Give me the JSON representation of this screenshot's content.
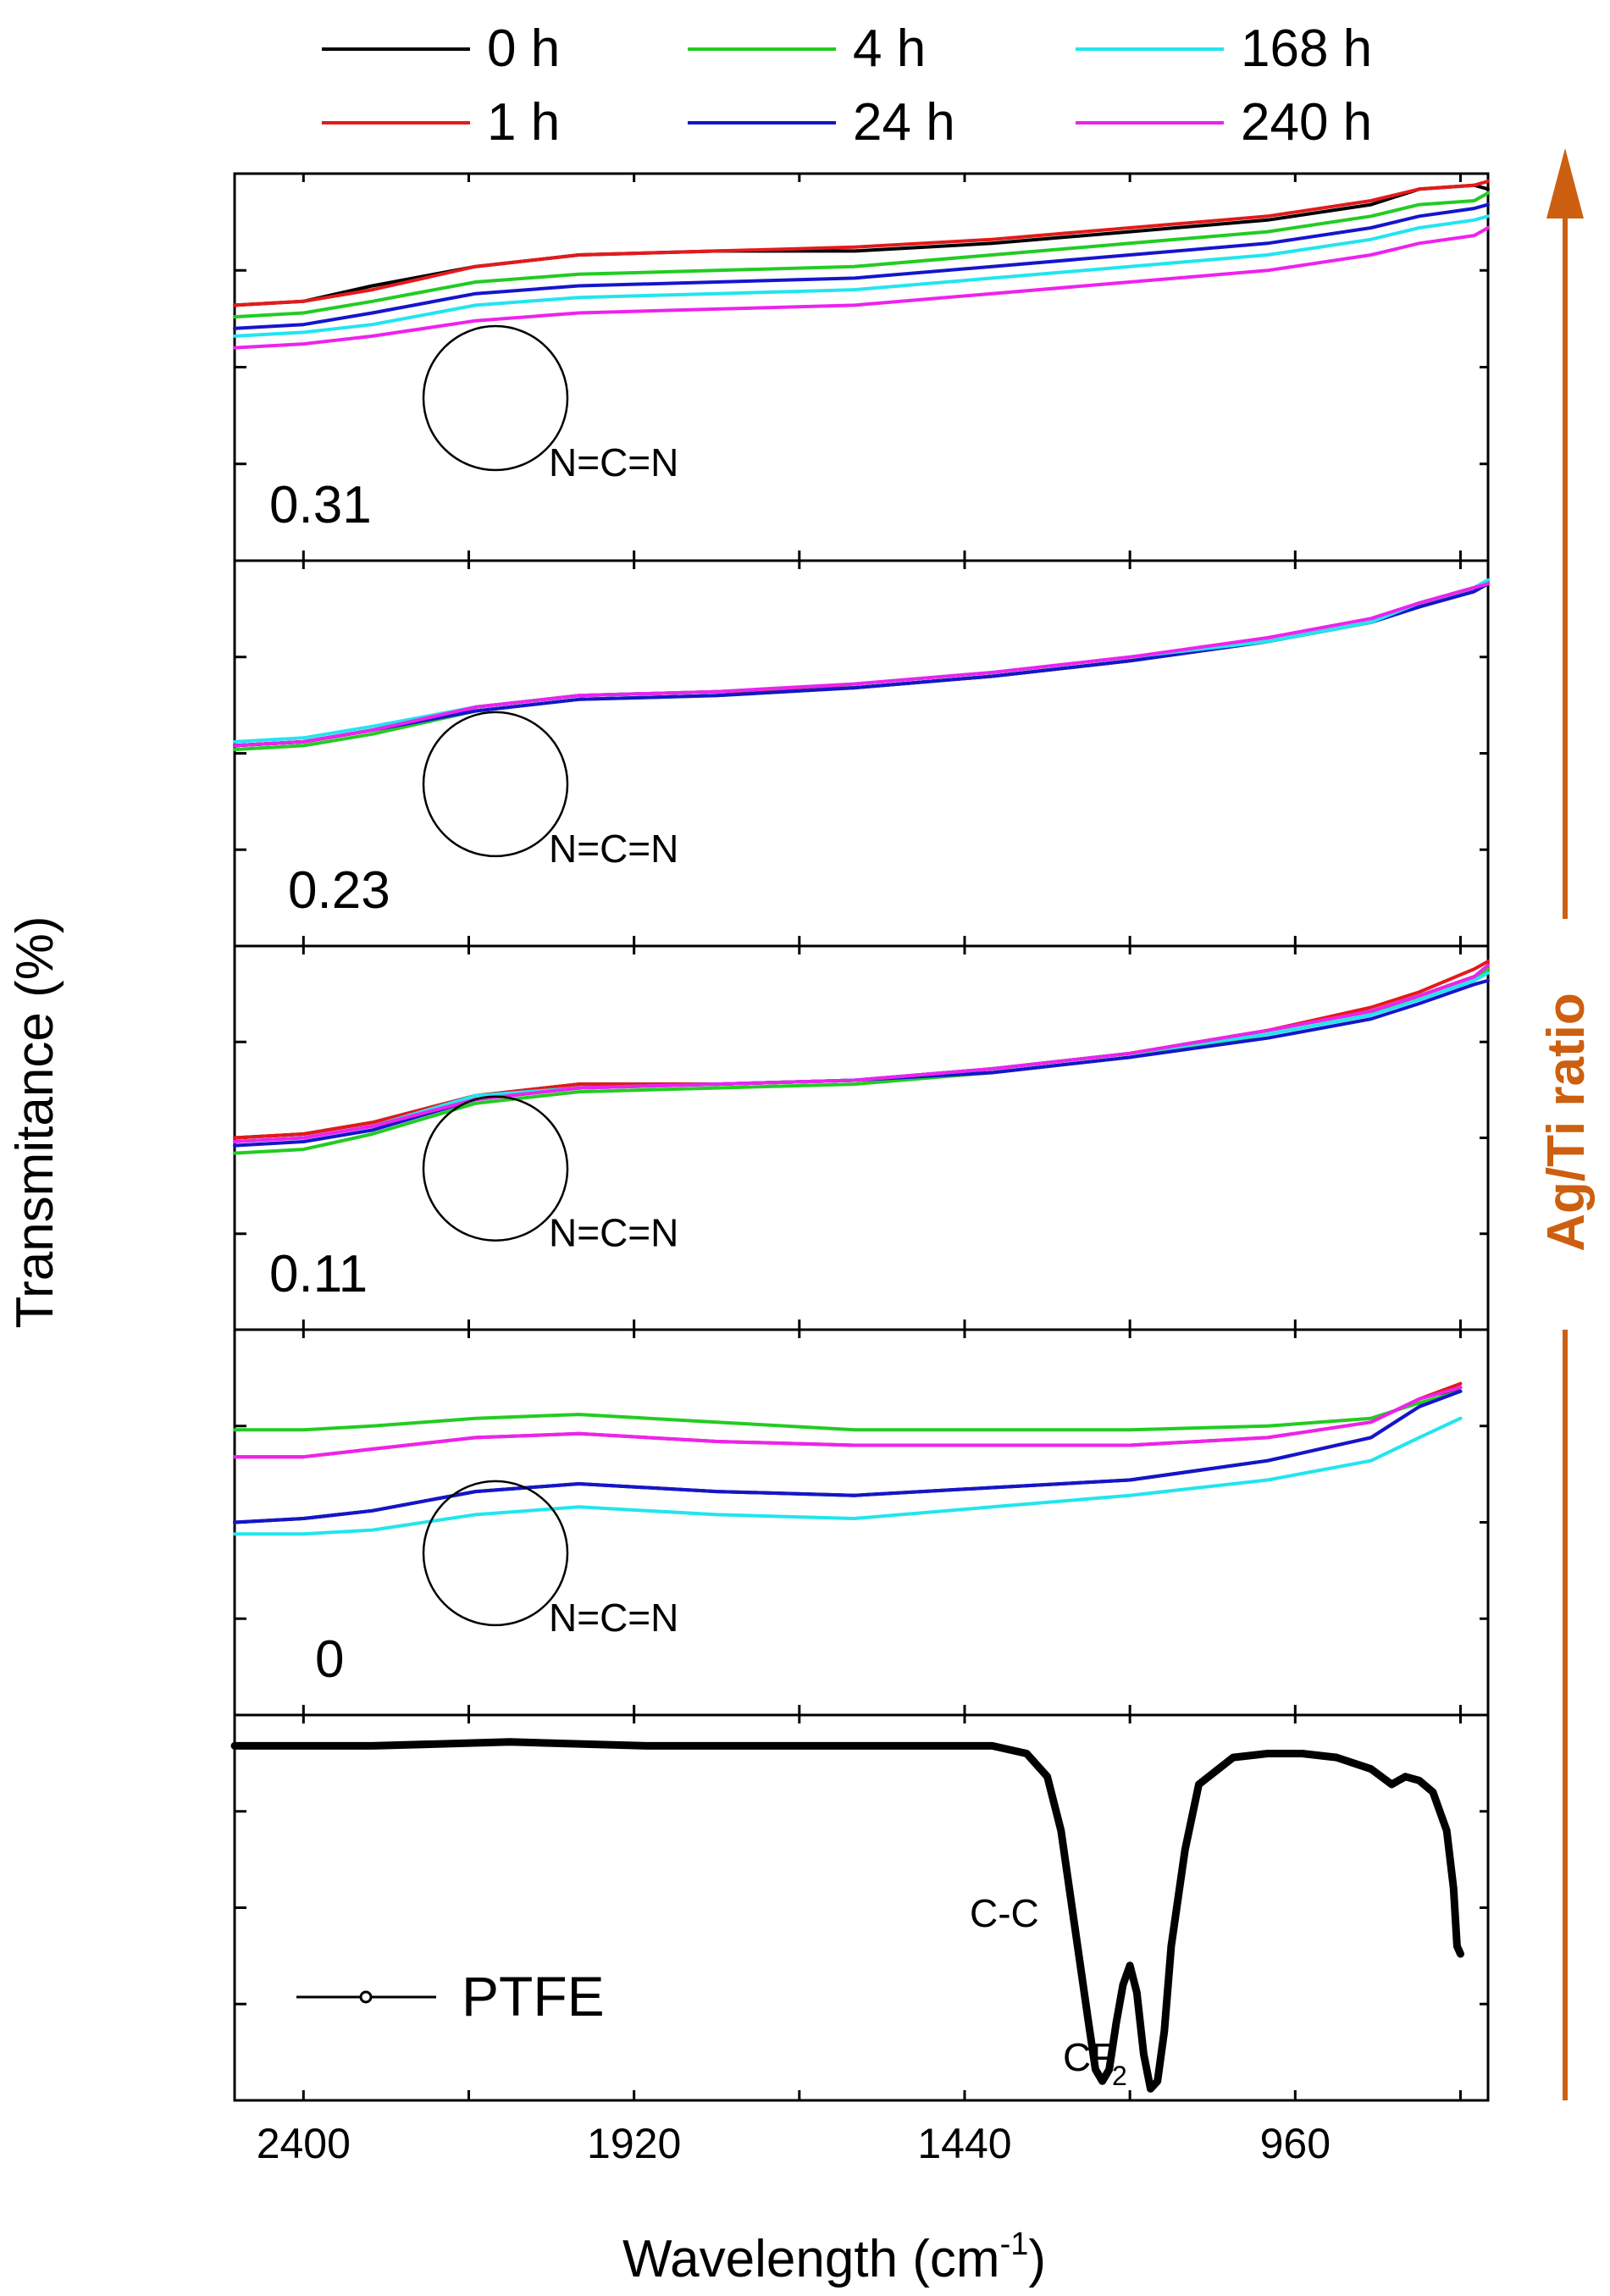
{
  "chart_data": {
    "type": "line",
    "title": "",
    "xlabel": "Wavelength (cm",
    "xlabel_sup": "-1",
    "xlabel_close": ")",
    "ylabel": "Transmitance (%)",
    "xlim": [
      2500,
      680
    ],
    "x_ticks": [
      2400,
      1920,
      1440,
      960
    ],
    "x_tick_labels": [
      "2400",
      "1920",
      "1440",
      "960"
    ],
    "legend": [
      {
        "name": "0 h",
        "color": "#000000"
      },
      {
        "name": "1 h",
        "color": "#e41a1c"
      },
      {
        "name": "4 h",
        "color": "#22cc22"
      },
      {
        "name": "24 h",
        "color": "#1515cc"
      },
      {
        "name": "168 h",
        "color": "#22e5ee"
      },
      {
        "name": "240 h",
        "color": "#ee22ee"
      }
    ],
    "panels": [
      {
        "label": "0.31",
        "annotation": "N=C=N",
        "series": [
          {
            "name": "0 h",
            "color": "#000000",
            "x": [
              2500,
              2400,
              2300,
              2150,
              2000,
              1800,
              1600,
              1400,
              1200,
              1000,
              850,
              780,
              700,
              680
            ],
            "y": [
              66,
              67,
              71,
              76,
              79,
              80,
              80,
              82,
              85,
              88,
              92,
              96,
              97,
              96
            ]
          },
          {
            "name": "1 h",
            "color": "#e41a1c",
            "x": [
              2500,
              2400,
              2300,
              2150,
              2000,
              1800,
              1600,
              1400,
              1200,
              1000,
              850,
              780,
              700,
              680
            ],
            "y": [
              66,
              67,
              70,
              76,
              79,
              80,
              81,
              83,
              86,
              89,
              93,
              96,
              97,
              98
            ]
          },
          {
            "name": "4 h",
            "color": "#22cc22",
            "x": [
              2500,
              2400,
              2300,
              2150,
              2000,
              1800,
              1600,
              1400,
              1200,
              1000,
              850,
              780,
              700,
              680
            ],
            "y": [
              63,
              64,
              67,
              72,
              74,
              75,
              76,
              79,
              82,
              85,
              89,
              92,
              93,
              95
            ]
          },
          {
            "name": "24 h",
            "color": "#1515cc",
            "x": [
              2500,
              2400,
              2300,
              2150,
              2000,
              1800,
              1600,
              1400,
              1200,
              1000,
              850,
              780,
              700,
              680
            ],
            "y": [
              60,
              61,
              64,
              69,
              71,
              72,
              73,
              76,
              79,
              82,
              86,
              89,
              91,
              92
            ]
          },
          {
            "name": "168 h",
            "color": "#22e5ee",
            "x": [
              2500,
              2400,
              2300,
              2150,
              2000,
              1800,
              1600,
              1400,
              1200,
              1000,
              850,
              780,
              700,
              680
            ],
            "y": [
              58,
              59,
              61,
              66,
              68,
              69,
              70,
              73,
              76,
              79,
              83,
              86,
              88,
              89
            ]
          },
          {
            "name": "240 h",
            "color": "#ee22ee",
            "x": [
              2500,
              2400,
              2300,
              2150,
              2000,
              1800,
              1600,
              1400,
              1200,
              1000,
              850,
              780,
              700,
              680
            ],
            "y": [
              55,
              56,
              58,
              62,
              64,
              65,
              66,
              69,
              72,
              75,
              79,
              82,
              84,
              86
            ]
          }
        ]
      },
      {
        "label": "0.23",
        "annotation": "N=C=N",
        "series": [
          {
            "name": "0 h",
            "color": "#000000",
            "x": [
              2500,
              2400,
              2300,
              2150,
              2000,
              1800,
              1600,
              1400,
              1200,
              1000,
              850,
              780,
              700,
              680
            ],
            "y": [
              52,
              53,
              56,
              62,
              65,
              66,
              67,
              70,
              74,
              79,
              84,
              89,
              93,
              94
            ]
          },
          {
            "name": "1 h",
            "color": "#e41a1c",
            "x": [
              2500,
              2400,
              2300,
              2150,
              2000,
              1800,
              1600,
              1400,
              1200,
              1000,
              850,
              780,
              700,
              680
            ],
            "y": [
              52,
              53,
              56,
              62,
              65,
              66,
              67,
              70,
              74,
              79,
              84,
              88,
              92,
              94
            ]
          },
          {
            "name": "4 h",
            "color": "#22cc22",
            "x": [
              2500,
              2400,
              2300,
              2150,
              2000,
              1800,
              1600,
              1400,
              1200,
              1000,
              850,
              780,
              700,
              680
            ],
            "y": [
              51,
              52,
              55,
              61,
              64,
              65,
              67,
              70,
              74,
              79,
              84,
              88,
              92,
              94
            ]
          },
          {
            "name": "24 h",
            "color": "#1515cc",
            "x": [
              2500,
              2400,
              2300,
              2150,
              2000,
              1800,
              1600,
              1400,
              1200,
              1000,
              850,
              780,
              700,
              680
            ],
            "y": [
              52,
              53,
              56,
              61,
              64,
              65,
              67,
              70,
              74,
              79,
              84,
              88,
              92,
              94
            ]
          },
          {
            "name": "168 h",
            "color": "#22e5ee",
            "x": [
              2500,
              2400,
              2300,
              2150,
              2000,
              1800,
              1600,
              1400,
              1200,
              1000,
              850,
              780,
              700,
              680
            ],
            "y": [
              53,
              54,
              57,
              62,
              65,
              66,
              68,
              71,
              75,
              79,
              84,
              89,
              93,
              95
            ]
          },
          {
            "name": "240 h",
            "color": "#ee22ee",
            "x": [
              2500,
              2400,
              2300,
              2150,
              2000,
              1800,
              1600,
              1400,
              1200,
              1000,
              850,
              780,
              700,
              680
            ],
            "y": [
              52,
              53,
              56,
              62,
              65,
              66,
              68,
              71,
              75,
              80,
              85,
              89,
              93,
              94
            ]
          }
        ]
      },
      {
        "label": "0.11",
        "annotation": "N=C=N",
        "series": [
          {
            "name": "0 h",
            "color": "#000000",
            "x": [
              2500,
              2400,
              2300,
              2150,
              2000,
              1800,
              1600,
              1400,
              1200,
              1000,
              850,
              780,
              700,
              680
            ],
            "y": [
              50,
              51,
              54,
              61,
              64,
              64,
              65,
              68,
              72,
              78,
              83,
              87,
              92,
              94
            ]
          },
          {
            "name": "1 h",
            "color": "#e41a1c",
            "x": [
              2500,
              2400,
              2300,
              2150,
              2000,
              1800,
              1600,
              1400,
              1200,
              1000,
              850,
              780,
              700,
              680
            ],
            "y": [
              50,
              51,
              54,
              61,
              64,
              64,
              65,
              68,
              72,
              78,
              84,
              88,
              94,
              96
            ]
          },
          {
            "name": "4 h",
            "color": "#22cc22",
            "x": [
              2500,
              2400,
              2300,
              2150,
              2000,
              1800,
              1600,
              1400,
              1200,
              1000,
              850,
              780,
              700,
              680
            ],
            "y": [
              46,
              47,
              51,
              59,
              62,
              63,
              64,
              67,
              71,
              77,
              82,
              87,
              92,
              94
            ]
          },
          {
            "name": "24 h",
            "color": "#1515cc",
            "x": [
              2500,
              2400,
              2300,
              2150,
              2000,
              1800,
              1600,
              1400,
              1200,
              1000,
              850,
              780,
              700,
              680
            ],
            "y": [
              48,
              49,
              52,
              60,
              63,
              64,
              65,
              67,
              71,
              76,
              81,
              85,
              90,
              91
            ]
          },
          {
            "name": "168 h",
            "color": "#22e5ee",
            "x": [
              2500,
              2400,
              2300,
              2150,
              2000,
              1800,
              1600,
              1400,
              1200,
              1000,
              850,
              780,
              700,
              680
            ],
            "y": [
              49,
              50,
              53,
              61,
              63,
              64,
              65,
              68,
              72,
              77,
              82,
              86,
              91,
              93
            ]
          },
          {
            "name": "240 h",
            "color": "#ee22ee",
            "x": [
              2500,
              2400,
              2300,
              2150,
              2000,
              1800,
              1600,
              1400,
              1200,
              1000,
              850,
              780,
              700,
              680
            ],
            "y": [
              49,
              50,
              53,
              60,
              63,
              64,
              65,
              68,
              72,
              78,
              83,
              87,
              92,
              95
            ]
          }
        ]
      },
      {
        "label": "0",
        "annotation": "N=C=N",
        "series": [
          {
            "name": "0 h",
            "color": "#000000",
            "x": [
              2500,
              2400,
              2300,
              2150,
              2000,
              1800,
              1600,
              1400,
              1200,
              1000,
              850,
              780,
              720
            ],
            "y": [
              50,
              51,
              53,
              58,
              60,
              58,
              57,
              59,
              61,
              66,
              72,
              80,
              85
            ]
          },
          {
            "name": "1 h",
            "color": "#e41a1c",
            "x": [
              2500,
              2400,
              2300,
              2150,
              2000,
              1800,
              1600,
              1400,
              1200,
              1000,
              850,
              780,
              720
            ],
            "y": [
              67,
              67,
              69,
              72,
              73,
              71,
              70,
              70,
              70,
              72,
              76,
              82,
              86
            ]
          },
          {
            "name": "4 h",
            "color": "#22cc22",
            "x": [
              2500,
              2400,
              2300,
              2150,
              2000,
              1800,
              1600,
              1400,
              1200,
              1000,
              850,
              780,
              720
            ],
            "y": [
              74,
              74,
              75,
              77,
              78,
              76,
              74,
              74,
              74,
              75,
              77,
              81,
              84
            ]
          },
          {
            "name": "24 h",
            "color": "#1515cc",
            "x": [
              2500,
              2400,
              2300,
              2150,
              2000,
              1800,
              1600,
              1400,
              1200,
              1000,
              850,
              780,
              720
            ],
            "y": [
              50,
              51,
              53,
              58,
              60,
              58,
              57,
              59,
              61,
              66,
              72,
              80,
              84
            ]
          },
          {
            "name": "168 h",
            "color": "#22e5ee",
            "x": [
              2500,
              2400,
              2300,
              2150,
              2000,
              1800,
              1600,
              1400,
              1200,
              1000,
              850,
              780,
              720
            ],
            "y": [
              47,
              47,
              48,
              52,
              54,
              52,
              51,
              54,
              57,
              61,
              66,
              72,
              77
            ]
          },
          {
            "name": "240 h",
            "color": "#ee22ee",
            "x": [
              2500,
              2400,
              2300,
              2150,
              2000,
              1800,
              1600,
              1400,
              1200,
              1000,
              850,
              780,
              720
            ],
            "y": [
              67,
              67,
              69,
              72,
              73,
              71,
              70,
              70,
              70,
              72,
              76,
              82,
              85
            ]
          }
        ]
      },
      {
        "label": "",
        "legend_label": "PTFE",
        "annotations": [
          "C-C",
          "CF",
          "2"
        ],
        "series": [
          {
            "name": "PTFE",
            "color": "#000000",
            "x": [
              2500,
              2300,
              2100,
              1900,
              1700,
              1500,
              1400,
              1350,
              1320,
              1300,
              1280,
              1260,
              1250,
              1240,
              1230,
              1220,
              1210,
              1200,
              1190,
              1180,
              1170,
              1160,
              1150,
              1140,
              1120,
              1100,
              1050,
              1000,
              950,
              900,
              850,
              820,
              800,
              780,
              760,
              740,
              730,
              725,
              720
            ],
            "y": [
              92,
              92,
              93,
              92,
              92,
              92,
              92,
              90,
              84,
              70,
              45,
              20,
              8,
              5,
              8,
              20,
              30,
              35,
              28,
              12,
              3,
              5,
              18,
              40,
              65,
              82,
              89,
              90,
              90,
              89,
              86,
              82,
              84,
              83,
              80,
              70,
              55,
              40,
              38
            ]
          }
        ]
      }
    ],
    "side_label": "Ag/Ti ratio",
    "side_color": "#cc5f10"
  }
}
